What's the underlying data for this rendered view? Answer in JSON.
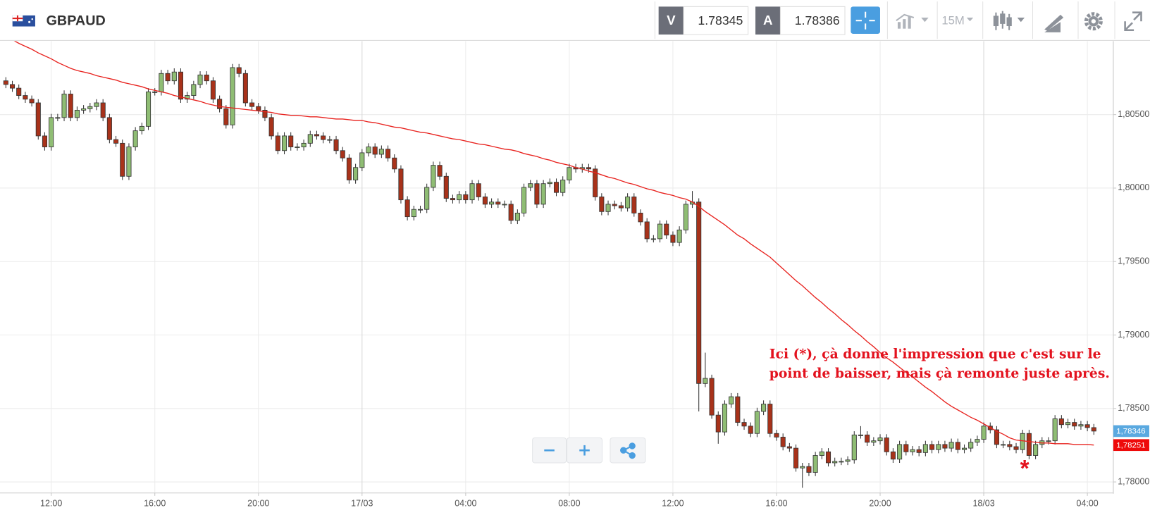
{
  "toolbar": {
    "symbol": "GBPAUD",
    "bid_label": "V",
    "bid": 1.78345,
    "ask_label": "A",
    "ask": 1.78386,
    "timeframe": "15M"
  },
  "chart_data": {
    "type": "candlestick",
    "categories": [
      null,
      null,
      null,
      null,
      null,
      null,
      null,
      "12:00",
      null,
      null,
      null,
      null,
      null,
      null,
      null,
      null,
      null,
      null,
      null,
      null,
      null,
      null,
      null,
      "16:00",
      null,
      null,
      null,
      null,
      null,
      null,
      null,
      null,
      null,
      null,
      null,
      null,
      null,
      null,
      null,
      "20:00",
      null,
      null,
      null,
      null,
      null,
      null,
      null,
      null,
      null,
      null,
      null,
      null,
      null,
      null,
      null,
      "17/03",
      null,
      null,
      null,
      null,
      null,
      null,
      null,
      null,
      null,
      null,
      null,
      null,
      null,
      null,
      null,
      "04:00",
      null,
      null,
      null,
      null,
      null,
      null,
      null,
      null,
      null,
      null,
      null,
      null,
      null,
      null,
      null,
      "08:00",
      null,
      null,
      null,
      null,
      null,
      null,
      null,
      null,
      null,
      null,
      null,
      null,
      null,
      null,
      null,
      "12:00",
      null,
      null,
      null,
      null,
      null,
      null,
      null,
      null,
      null,
      null,
      null,
      null,
      null,
      null,
      null,
      "16:00",
      null,
      null,
      null,
      null,
      null,
      null,
      null,
      null,
      null,
      null,
      null,
      null,
      null,
      null,
      null,
      "20:00",
      null,
      null,
      null,
      null,
      null,
      null,
      null,
      null,
      null,
      null,
      null,
      null,
      null,
      null,
      null,
      "18/03",
      null,
      null,
      null,
      null,
      null,
      null,
      null,
      null,
      null,
      null,
      null,
      null,
      null,
      null,
      null,
      "04:00",
      null
    ],
    "open": [
      1.8073,
      1.80705,
      1.8068,
      1.8063,
      1.80605,
      1.8058,
      1.80355,
      1.8028,
      1.8048,
      1.8048,
      1.8064,
      1.8048,
      1.8053,
      1.8054,
      1.80555,
      1.8058,
      1.8048,
      1.8033,
      1.80305,
      1.8008,
      1.8028,
      1.8039,
      1.8042,
      1.80655,
      1.80655,
      1.8078,
      1.8073,
      1.8079,
      1.80605,
      1.8063,
      1.80705,
      1.8077,
      1.8073,
      1.80605,
      1.8054,
      1.8043,
      1.8082,
      1.8078,
      1.8058,
      1.80555,
      1.8053,
      1.8048,
      1.80355,
      1.80255,
      1.80355,
      1.8028,
      1.8028,
      1.80305,
      1.80365,
      1.80355,
      1.8033,
      1.8033,
      1.80255,
      1.80205,
      1.80055,
      1.8014,
      1.8024,
      1.8028,
      1.8023,
      1.80265,
      1.80205,
      1.8013,
      1.7992,
      1.79805,
      1.79855,
      1.79855,
      1.80005,
      1.80155,
      1.8008,
      1.7993,
      1.7992,
      1.79955,
      1.7992,
      1.8003,
      1.7994,
      1.7989,
      1.79905,
      1.7989,
      1.7989,
      1.7978,
      1.7983,
      1.80005,
      1.8003,
      1.7989,
      1.8003,
      1.8004,
      1.7997,
      1.80055,
      1.8014,
      1.8013,
      1.8014,
      1.8013,
      1.7994,
      1.7984,
      1.7989,
      1.7988,
      1.79865,
      1.7994,
      1.7983,
      1.7977,
      1.79655,
      1.79655,
      1.79755,
      1.7968,
      1.7963,
      1.79715,
      1.7989,
      1.79905,
      1.7867,
      1.78705,
      1.78455,
      1.7834,
      1.7853,
      1.7858,
      1.78405,
      1.7838,
      1.7833,
      1.7848,
      1.7853,
      1.7833,
      1.78305,
      1.7824,
      1.7823,
      1.78095,
      1.78105,
      1.78065,
      1.7818,
      1.78205,
      1.7813,
      1.7814,
      1.7814,
      1.7815,
      1.7832,
      1.7832,
      1.7827,
      1.7828,
      1.783,
      1.78205,
      1.78155,
      1.78255,
      1.78205,
      1.7822,
      1.782,
      1.78255,
      1.7822,
      1.78255,
      1.7823,
      1.7827,
      1.7822,
      1.7823,
      1.7827,
      1.7829,
      1.7838,
      1.78355,
      1.78255,
      1.78255,
      1.7824,
      1.7822,
      1.7833,
      1.7818,
      1.78255,
      1.7828,
      1.7828,
      1.7843,
      1.7839,
      1.78405,
      1.7838,
      1.7839,
      1.7837
    ],
    "high": [
      1.80755,
      1.8073,
      1.80705,
      1.80655,
      1.8063,
      1.80605,
      1.8038,
      1.80505,
      1.80505,
      1.80665,
      1.80665,
      1.80555,
      1.80565,
      1.8058,
      1.80605,
      1.80605,
      1.80505,
      1.80355,
      1.8033,
      1.80305,
      1.80415,
      1.80445,
      1.8068,
      1.8068,
      1.80805,
      1.80805,
      1.80815,
      1.80815,
      1.80655,
      1.8073,
      1.80795,
      1.80795,
      1.80755,
      1.8063,
      1.80565,
      1.80845,
      1.80845,
      1.80805,
      1.80605,
      1.8058,
      1.80555,
      1.80505,
      1.8038,
      1.8038,
      1.8038,
      1.80305,
      1.8033,
      1.8039,
      1.8039,
      1.8038,
      1.80355,
      1.80355,
      1.8028,
      1.8023,
      1.80165,
      1.80265,
      1.80305,
      1.80305,
      1.8029,
      1.8029,
      1.8023,
      1.80155,
      1.79945,
      1.7988,
      1.7988,
      1.8003,
      1.8018,
      1.8018,
      1.80105,
      1.79955,
      1.7998,
      1.7998,
      1.80055,
      1.80055,
      1.79965,
      1.7993,
      1.7993,
      1.79915,
      1.79915,
      1.79855,
      1.8003,
      1.80055,
      1.80055,
      1.80055,
      1.80065,
      1.80065,
      1.8008,
      1.80165,
      1.80165,
      1.80165,
      1.80165,
      1.80155,
      1.79965,
      1.79915,
      1.79915,
      1.79905,
      1.79965,
      1.79965,
      1.79855,
      1.79795,
      1.7968,
      1.7978,
      1.7978,
      1.79705,
      1.7974,
      1.79915,
      1.7998,
      1.7993,
      1.7888,
      1.7873,
      1.7848,
      1.78555,
      1.78605,
      1.78605,
      1.7843,
      1.78405,
      1.78505,
      1.78555,
      1.78555,
      1.78355,
      1.7833,
      1.78265,
      1.78255,
      1.7813,
      1.7813,
      1.78205,
      1.7823,
      1.7823,
      1.78165,
      1.78165,
      1.78175,
      1.78345,
      1.7838,
      1.78345,
      1.78305,
      1.78325,
      1.78325,
      1.7823,
      1.7828,
      1.7828,
      1.78245,
      1.78245,
      1.7828,
      1.7828,
      1.7828,
      1.7828,
      1.78295,
      1.78295,
      1.78255,
      1.78295,
      1.78315,
      1.78405,
      1.78405,
      1.7838,
      1.7828,
      1.7828,
      1.78265,
      1.78355,
      1.78355,
      1.7828,
      1.78305,
      1.78305,
      1.78455,
      1.78455,
      1.7843,
      1.7843,
      1.78415,
      1.78415,
      1.78395
    ],
    "low": [
      1.8068,
      1.80655,
      1.80605,
      1.8058,
      1.80555,
      1.8033,
      1.80255,
      1.80255,
      1.80455,
      1.80455,
      1.80455,
      1.80455,
      1.80505,
      1.80515,
      1.8053,
      1.80455,
      1.80305,
      1.8028,
      1.80055,
      1.80055,
      1.80255,
      1.80365,
      1.80395,
      1.8063,
      1.8063,
      1.80705,
      1.80705,
      1.8058,
      1.8058,
      1.80605,
      1.8068,
      1.80705,
      1.8058,
      1.80515,
      1.80405,
      1.80405,
      1.80755,
      1.80555,
      1.8053,
      1.80505,
      1.80455,
      1.8033,
      1.8023,
      1.8023,
      1.80255,
      1.80255,
      1.80255,
      1.8028,
      1.8033,
      1.80305,
      1.80305,
      1.8023,
      1.8018,
      1.8003,
      1.8003,
      1.80115,
      1.80215,
      1.80205,
      1.80205,
      1.8018,
      1.80105,
      1.79895,
      1.7978,
      1.7978,
      1.7983,
      1.7983,
      1.7998,
      1.80055,
      1.79905,
      1.79895,
      1.79895,
      1.79895,
      1.79895,
      1.79915,
      1.79865,
      1.79865,
      1.79865,
      1.79865,
      1.79755,
      1.79755,
      1.79805,
      1.7998,
      1.79865,
      1.79865,
      1.80005,
      1.79945,
      1.79945,
      1.8003,
      1.80105,
      1.80105,
      1.80105,
      1.79915,
      1.79815,
      1.79815,
      1.79855,
      1.7984,
      1.7984,
      1.79805,
      1.79745,
      1.7963,
      1.7963,
      1.7963,
      1.79655,
      1.79605,
      1.79605,
      1.7969,
      1.79865,
      1.7848,
      1.78645,
      1.7843,
      1.7826,
      1.78315,
      1.78505,
      1.7838,
      1.78355,
      1.78305,
      1.78305,
      1.78455,
      1.78305,
      1.7828,
      1.78215,
      1.78205,
      1.7807,
      1.7796,
      1.7804,
      1.7804,
      1.78155,
      1.78105,
      1.78105,
      1.78115,
      1.78115,
      1.78125,
      1.78295,
      1.78245,
      1.78245,
      1.78255,
      1.7818,
      1.7813,
      1.7813,
      1.7818,
      1.7818,
      1.78175,
      1.78175,
      1.78195,
      1.78195,
      1.78205,
      1.78205,
      1.78195,
      1.78195,
      1.78205,
      1.78245,
      1.78265,
      1.7833,
      1.7823,
      1.7823,
      1.78215,
      1.78195,
      1.78195,
      1.78155,
      1.78155,
      1.7823,
      1.78255,
      1.78255,
      1.78365,
      1.78365,
      1.78355,
      1.78355,
      1.78345,
      1.78321
    ],
    "close": [
      1.80705,
      1.8068,
      1.8063,
      1.80605,
      1.8058,
      1.80355,
      1.8028,
      1.8048,
      1.8048,
      1.8064,
      1.8048,
      1.8053,
      1.8054,
      1.80555,
      1.8058,
      1.8048,
      1.8033,
      1.80305,
      1.8008,
      1.8028,
      1.8039,
      1.8042,
      1.80655,
      1.80655,
      1.8078,
      1.8073,
      1.8079,
      1.80605,
      1.8063,
      1.80705,
      1.8077,
      1.8073,
      1.80605,
      1.8054,
      1.8043,
      1.8082,
      1.8078,
      1.8058,
      1.80555,
      1.8053,
      1.8048,
      1.80355,
      1.80255,
      1.80355,
      1.8028,
      1.8028,
      1.80305,
      1.80365,
      1.80355,
      1.8033,
      1.8033,
      1.80255,
      1.80205,
      1.80055,
      1.8014,
      1.8024,
      1.8028,
      1.8023,
      1.80265,
      1.80205,
      1.8013,
      1.7992,
      1.79805,
      1.79855,
      1.79855,
      1.80005,
      1.80155,
      1.8008,
      1.7993,
      1.7992,
      1.79955,
      1.7992,
      1.8003,
      1.7994,
      1.7989,
      1.79905,
      1.7989,
      1.7989,
      1.7978,
      1.7983,
      1.80005,
      1.8003,
      1.7989,
      1.8003,
      1.8004,
      1.7997,
      1.80055,
      1.8014,
      1.8013,
      1.8014,
      1.8013,
      1.7994,
      1.7984,
      1.7989,
      1.7988,
      1.79865,
      1.7994,
      1.7983,
      1.7977,
      1.79655,
      1.79655,
      1.79755,
      1.7968,
      1.7963,
      1.79715,
      1.7989,
      1.79905,
      1.7867,
      1.78705,
      1.78455,
      1.7834,
      1.7853,
      1.7858,
      1.78405,
      1.7838,
      1.7833,
      1.7848,
      1.7853,
      1.7833,
      1.78305,
      1.7824,
      1.7823,
      1.78095,
      1.78105,
      1.78065,
      1.7818,
      1.78205,
      1.7813,
      1.7814,
      1.7814,
      1.7815,
      1.7832,
      1.7832,
      1.7827,
      1.7828,
      1.783,
      1.78205,
      1.78155,
      1.78255,
      1.78205,
      1.7822,
      1.782,
      1.78255,
      1.7822,
      1.78255,
      1.7823,
      1.7827,
      1.7822,
      1.7823,
      1.7827,
      1.7829,
      1.7838,
      1.78355,
      1.78255,
      1.78255,
      1.7824,
      1.7822,
      1.7833,
      1.7818,
      1.78255,
      1.7828,
      1.7828,
      1.7843,
      1.7839,
      1.78405,
      1.7838,
      1.7839,
      1.7837,
      1.78346
    ],
    "up_color": "#8fbd74",
    "down_color": "#a8321a",
    "moving_average": {
      "color": "#e8231f",
      "values": [
        1.8103,
        1.8101,
        1.80985,
        1.80965,
        1.80945,
        1.8092,
        1.809,
        1.8088,
        1.80855,
        1.80835,
        1.80815,
        1.808,
        1.8079,
        1.8078,
        1.80765,
        1.80755,
        1.80745,
        1.80735,
        1.8072,
        1.8071,
        1.807,
        1.8069,
        1.80675,
        1.80665,
        1.80655,
        1.80645,
        1.8063,
        1.8062,
        1.8061,
        1.806,
        1.8059,
        1.80575,
        1.80565,
        1.80555,
        1.8055,
        1.80545,
        1.8054,
        1.80535,
        1.8053,
        1.80525,
        1.8052,
        1.80515,
        1.80505,
        1.805,
        1.80495,
        1.80495,
        1.8049,
        1.80485,
        1.80485,
        1.8048,
        1.80475,
        1.8047,
        1.8047,
        1.80465,
        1.8046,
        1.8046,
        1.8045,
        1.80445,
        1.80435,
        1.80425,
        1.80415,
        1.8041,
        1.804,
        1.8039,
        1.8038,
        1.80375,
        1.80365,
        1.80355,
        1.80345,
        1.80335,
        1.8033,
        1.8032,
        1.8031,
        1.803,
        1.80295,
        1.80285,
        1.80275,
        1.80265,
        1.8026,
        1.8025,
        1.80235,
        1.80225,
        1.80215,
        1.802,
        1.8019,
        1.80175,
        1.80165,
        1.80155,
        1.8014,
        1.8013,
        1.80115,
        1.80105,
        1.8009,
        1.80075,
        1.80065,
        1.8005,
        1.80035,
        1.80025,
        1.8001,
        1.79995,
        1.79985,
        1.7997,
        1.7996,
        1.7995,
        1.79935,
        1.79925,
        1.79905,
        1.79875,
        1.7984,
        1.7981,
        1.7978,
        1.7975,
        1.79715,
        1.7968,
        1.79655,
        1.7962,
        1.7959,
        1.7956,
        1.7953,
        1.7949,
        1.7945,
        1.7941,
        1.7937,
        1.79335,
        1.79295,
        1.79255,
        1.7922,
        1.7918,
        1.79145,
        1.79105,
        1.7907,
        1.7903,
        1.78995,
        1.78955,
        1.7892,
        1.7888,
        1.78845,
        1.78815,
        1.7878,
        1.78745,
        1.78715,
        1.7868,
        1.78645,
        1.78615,
        1.7858,
        1.78545,
        1.78515,
        1.7849,
        1.78465,
        1.7844,
        1.7842,
        1.78395,
        1.7837,
        1.78345,
        1.78325,
        1.783,
        1.78285,
        1.7828,
        1.78275,
        1.7827,
        1.78265,
        1.78265,
        1.7826,
        1.7826,
        1.7826,
        1.78255,
        1.78255,
        1.78255,
        1.78251
      ]
    },
    "ylim": [
      1.7792,
      1.81
    ],
    "yticks": [
      {
        "value": 1.78,
        "label": "1,78000"
      },
      {
        "value": 1.785,
        "label": "1,78500"
      },
      {
        "value": 1.79,
        "label": "1,79000"
      },
      {
        "value": 1.795,
        "label": "1,79500"
      },
      {
        "value": 1.8,
        "label": "1,80000"
      },
      {
        "value": 1.805,
        "label": "1,80500"
      }
    ],
    "grid": true,
    "price_labels": [
      {
        "value": 1.78346,
        "label": "1,78346",
        "color": "#5aa9e0"
      },
      {
        "value": 1.78251,
        "label": "1,78251",
        "color": "#ee0a0a"
      }
    ],
    "annotation": [
      "Ici (*), çà donne l'impression que c'est sur le",
      "point de baisser, mais çà remonte juste après."
    ],
    "annotation_marker": "*",
    "annotation_color": "#e3121e"
  }
}
